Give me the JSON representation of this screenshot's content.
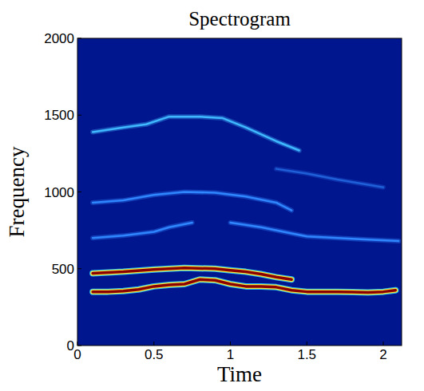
{
  "chart_data": {
    "type": "spectrogram",
    "title": "Spectrogram",
    "x_label": "Time",
    "y_label": "Frequency",
    "xlim": [
      0,
      2.12
    ],
    "ylim": [
      0,
      2000
    ],
    "xticks": [
      0,
      0.5,
      1,
      1.5,
      2
    ],
    "yticks": [
      0,
      500,
      1000,
      1500,
      2000
    ],
    "grid": false,
    "series": [
      {
        "color": "#8b0000",
        "line_style": "strong",
        "x": [
          0.1,
          0.2,
          0.3,
          0.4,
          0.5,
          0.6,
          0.7,
          0.8,
          0.9,
          1.0,
          1.1,
          1.2,
          1.3,
          1.4,
          1.5,
          1.6,
          1.7,
          1.8,
          1.9,
          2.0,
          2.08
        ],
        "values": [
          350,
          350,
          355,
          365,
          385,
          395,
          400,
          430,
          425,
          400,
          385,
          385,
          380,
          360,
          350,
          350,
          350,
          348,
          345,
          350,
          360
        ]
      },
      {
        "color": "#8b0000",
        "line_style": "strong",
        "x": [
          0.1,
          0.3,
          0.5,
          0.7,
          0.9,
          1.0,
          1.1,
          1.2,
          1.3,
          1.4
        ],
        "values": [
          470,
          480,
          495,
          505,
          500,
          490,
          480,
          465,
          445,
          430
        ]
      },
      {
        "color": "#2f86ff",
        "line_style": "faint",
        "x": [
          0.1,
          0.3,
          0.5,
          0.6,
          0.75,
          0.9,
          1.0,
          1.2,
          1.4,
          1.5,
          1.7,
          1.9,
          2.1
        ],
        "values": [
          700,
          715,
          740,
          770,
          800,
          null,
          800,
          770,
          730,
          710,
          700,
          690,
          680
        ]
      },
      {
        "color": "#2f86ff",
        "line_style": "faint",
        "x": [
          0.1,
          0.3,
          0.5,
          0.7,
          0.9,
          1.1,
          1.3,
          1.4
        ],
        "values": [
          930,
          945,
          980,
          1000,
          995,
          970,
          930,
          880
        ]
      },
      {
        "color": "#3fb8ff",
        "line_style": "faint",
        "x": [
          0.1,
          0.3,
          0.45,
          0.6,
          0.8,
          0.95,
          1.1,
          1.3,
          1.45
        ],
        "values": [
          1390,
          1420,
          1440,
          1490,
          1490,
          1480,
          1420,
          1330,
          1270
        ]
      },
      {
        "color": "#1f5fd8",
        "line_style": "faint",
        "x": [
          1.3,
          1.5,
          1.7,
          2.0
        ],
        "values": [
          1150,
          1120,
          1080,
          1030
        ]
      }
    ]
  }
}
